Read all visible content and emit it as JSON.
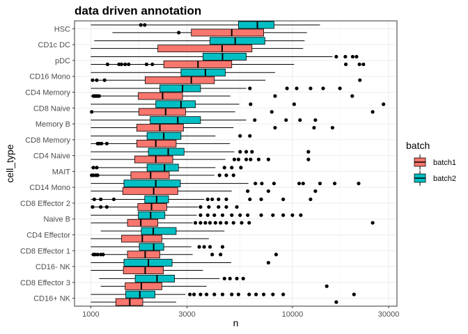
{
  "chart_data": {
    "type": "boxplot",
    "title": "data driven annotation",
    "xlabel": "n",
    "ylabel": "cell_type",
    "x_scale": "log10",
    "xlim": [
      830,
      33000
    ],
    "x_ticks": [
      1000,
      3000,
      10000,
      30000
    ],
    "x_tick_labels": [
      "1000",
      "3000",
      "10000",
      "30000"
    ],
    "grid": true,
    "legend": {
      "title": "batch",
      "position": "right",
      "entries": [
        {
          "name": "batch1",
          "color": "#F8766D"
        },
        {
          "name": "batch2",
          "color": "#00BFC4"
        }
      ]
    },
    "categories": [
      "HSC",
      "CD1c DC",
      "pDC",
      "CD16 Mono",
      "CD4 Memory",
      "CD8 Naive",
      "Memory B",
      "CD8 Memory",
      "CD4 Naive",
      "MAIT",
      "CD14 Mono",
      "CD8 Effector 2",
      "Naive B",
      "CD4 Effector",
      "CD8 Effector 1",
      "CD16- NK",
      "CD8 Effector 3",
      "CD16+ NK"
    ],
    "series": [
      {
        "name": "batch1",
        "color": "#F8766D",
        "boxes": [
          {
            "min": 1280,
            "q1": 3150,
            "median": 5000,
            "q3": 7200,
            "max": 11800,
            "outliers": [
              2730
            ]
          },
          {
            "min": 1000,
            "q1": 2150,
            "median": 4480,
            "q3": 6300,
            "max": 11300,
            "outliers": []
          },
          {
            "min": 1000,
            "q1": 2300,
            "median": 3400,
            "q3": 5000,
            "max": 10200,
            "outliers": [
              1210,
              1380,
              1420,
              1480,
              1540,
              1890,
              2020,
              18400,
              21500,
              22500
            ]
          },
          {
            "min": 1000,
            "q1": 1860,
            "median": 3150,
            "q3": 4100,
            "max": 7350,
            "outliers": [
              1020,
              1070,
              1170,
              21600
            ]
          },
          {
            "min": 1000,
            "q1": 1720,
            "median": 2270,
            "q3": 2850,
            "max": 4920,
            "outliers": [
              1030,
              1040,
              1060,
              1080,
              1100,
              8200,
              19800
            ]
          },
          {
            "min": 1000,
            "q1": 1730,
            "median": 2350,
            "q3": 2950,
            "max": 5200,
            "outliers": [
              1010,
              7900,
              25000
            ]
          },
          {
            "min": 1000,
            "q1": 1690,
            "median": 2200,
            "q3": 2880,
            "max": 5100,
            "outliers": [
              8200,
              12800,
              15800
            ]
          },
          {
            "min": 1000,
            "q1": 1690,
            "median": 2100,
            "q3": 2650,
            "max": 4900,
            "outliers": [
              1080,
              1100,
              1130,
              1200
            ]
          },
          {
            "min": 1000,
            "q1": 1650,
            "median": 2100,
            "q3": 2550,
            "max": 4650,
            "outliers": [
              5150,
              5400,
              5900,
              6200,
              6800,
              7600,
              12000
            ]
          },
          {
            "min": 1000,
            "q1": 1580,
            "median": 1980,
            "q3": 2450,
            "max": 4100,
            "outliers": [
              1010,
              1030,
              1060,
              1080,
              4350,
              4700,
              5100
            ]
          },
          {
            "min": 1000,
            "q1": 1440,
            "median": 2050,
            "q3": 2700,
            "max": 5000,
            "outliers": [
              6000,
              7600,
              13000
            ]
          },
          {
            "min": 1000,
            "q1": 1710,
            "median": 2000,
            "q3": 2380,
            "max": 3400,
            "outliers": [
              1020,
              1120,
              1200,
              3500,
              3850,
              4300,
              4700,
              5300
            ]
          },
          {
            "min": 1000,
            "q1": 1520,
            "median": 1770,
            "q3": 2150,
            "max": 3200,
            "outliers": [
              3300,
              3500,
              3700,
              3900,
              4150,
              4400,
              4700,
              5100,
              5600,
              6100,
              25000
            ]
          },
          {
            "min": 1000,
            "q1": 1420,
            "median": 1800,
            "q3": 2250,
            "max": 3850,
            "outliers": []
          },
          {
            "min": 1000,
            "q1": 1520,
            "median": 1860,
            "q3": 2200,
            "max": 3200,
            "outliers": [
              1030,
              1050,
              1080,
              1120,
              1150,
              4000,
              4400,
              8300
            ]
          },
          {
            "min": 1000,
            "q1": 1450,
            "median": 1860,
            "q3": 2290,
            "max": 3600,
            "outliers": []
          },
          {
            "min": 1120,
            "q1": 1480,
            "median": 1780,
            "q3": 2250,
            "max": 3750,
            "outliers": [
              14800
            ]
          },
          {
            "min": 1000,
            "q1": 1330,
            "median": 1560,
            "q3": 1810,
            "max": 2650,
            "outliers": [
              16500
            ]
          }
        ]
      },
      {
        "name": "batch2",
        "color": "#00BFC4",
        "boxes": [
          {
            "min": 1000,
            "q1": 5400,
            "median": 6700,
            "q3": 8100,
            "max": 13700,
            "outliers": [
              1770,
              1850
            ]
          },
          {
            "min": 1040,
            "q1": 3900,
            "median": 5200,
            "q3": 7300,
            "max": 11500,
            "outliers": []
          },
          {
            "min": 1000,
            "q1": 3600,
            "median": 4500,
            "q3": 5900,
            "max": 15800,
            "outliers": [
              16500,
              18300,
              19900,
              20800
            ]
          },
          {
            "min": 1000,
            "q1": 2800,
            "median": 3700,
            "q3": 4650,
            "max": 8200,
            "outliers": []
          },
          {
            "min": 1000,
            "q1": 2200,
            "median": 2850,
            "q3": 3500,
            "max": 5900,
            "outliers": [
              6150,
              9400,
              10500,
              12300,
              14200,
              17200
            ]
          },
          {
            "min": 1000,
            "q1": 2100,
            "median": 2800,
            "q3": 3300,
            "max": 5450,
            "outliers": [
              6200,
              10200,
              28300
            ]
          },
          {
            "min": 1000,
            "q1": 1970,
            "median": 2700,
            "q3": 3500,
            "max": 5900,
            "outliers": [
              6500,
              9300,
              10900,
              13000
            ]
          },
          {
            "min": 1000,
            "q1": 1900,
            "median": 2300,
            "q3": 2800,
            "max": 4150,
            "outliers": [
              5500,
              6150
            ]
          },
          {
            "min": 1000,
            "q1": 1930,
            "median": 2420,
            "q3": 2900,
            "max": 5150,
            "outliers": [
              5500,
              5900,
              6300,
              12000
            ]
          },
          {
            "min": 1000,
            "q1": 1900,
            "median": 2320,
            "q3": 2720,
            "max": 4150,
            "outliers": [
              1030,
              1070,
              4600,
              5000,
              5550
            ]
          },
          {
            "min": 1000,
            "q1": 1460,
            "median": 2100,
            "q3": 2780,
            "max": 6050,
            "outliers": [
              6550,
              7050,
              8100,
              10800,
              11300,
              13700,
              16200,
              21300
            ]
          },
          {
            "min": 1000,
            "q1": 1850,
            "median": 2120,
            "q3": 2430,
            "max": 3650,
            "outliers": [
              1040,
              1120,
              1300,
              3800,
              4000,
              4300,
              4700,
              6150,
              7000,
              9000,
              12300
            ]
          },
          {
            "min": 1000,
            "q1": 1720,
            "median": 1980,
            "q3": 2330,
            "max": 3350,
            "outliers": [
              3500,
              3800,
              4100,
              4500,
              5000,
              5500,
              6000,
              7000,
              8000,
              9000,
              10000,
              11000
            ]
          },
          {
            "min": 1120,
            "q1": 1780,
            "median": 2040,
            "q3": 2650,
            "max": 4600,
            "outliers": []
          },
          {
            "min": 1000,
            "q1": 1740,
            "median": 2050,
            "q3": 2300,
            "max": 3150,
            "outliers": [
              3450,
              3650,
              3900,
              4500
            ]
          },
          {
            "min": 1000,
            "q1": 1460,
            "median": 1930,
            "q3": 2530,
            "max": 4970,
            "outliers": [
              7600
            ]
          },
          {
            "min": 1100,
            "q1": 1660,
            "median": 2130,
            "q3": 2600,
            "max": 4350,
            "outliers": [
              4600,
              4900,
              5300,
              5700
            ]
          },
          {
            "min": 1000,
            "q1": 1490,
            "median": 1750,
            "q3": 2080,
            "max": 2950,
            "outliers": [
              3100,
              3250,
              3500,
              3750,
              4100,
              4500,
              5000,
              5400,
              6100,
              6600,
              7200,
              8000,
              9000,
              20200
            ]
          }
        ]
      }
    ]
  }
}
